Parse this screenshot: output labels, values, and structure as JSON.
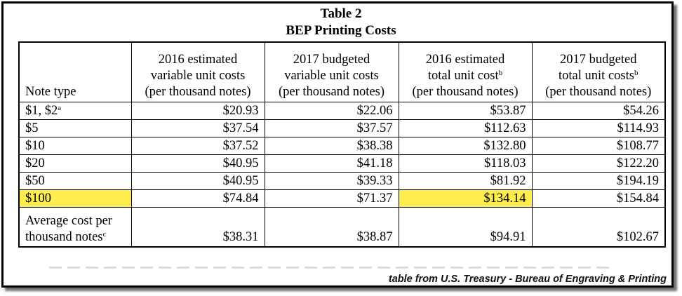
{
  "table": {
    "title": "Table 2",
    "subtitle": "BEP Printing Costs",
    "headers": [
      {
        "lines": [
          "",
          "",
          "Note type"
        ],
        "sup": ""
      },
      {
        "lines": [
          "2016 estimated",
          "variable unit costs",
          "(per thousand notes)"
        ],
        "sup": ""
      },
      {
        "lines": [
          "2017 budgeted",
          "variable unit costs",
          "(per thousand notes)"
        ],
        "sup": ""
      },
      {
        "lines": [
          "2016 estimated",
          "total unit cost",
          "(per thousand notes)"
        ],
        "sup": "b"
      },
      {
        "lines": [
          "2017 budgeted",
          "total unit costs",
          "(per thousand notes)"
        ],
        "sup": "b"
      }
    ],
    "rows": [
      {
        "label": "$1, $2",
        "sup": "a",
        "values": [
          "$20.93",
          "$22.06",
          "$53.87",
          "$54.26"
        ]
      },
      {
        "label": "$5",
        "sup": "",
        "values": [
          "$37.54",
          "$37.57",
          "$112.63",
          "$114.93"
        ]
      },
      {
        "label": "$10",
        "sup": "",
        "values": [
          "$37.52",
          "$38.38",
          "$132.80",
          "$108.77"
        ]
      },
      {
        "label": "$20",
        "sup": "",
        "values": [
          "$40.95",
          "$41.18",
          "$118.03",
          "$122.20"
        ]
      },
      {
        "label": "$50",
        "sup": "",
        "values": [
          "$40.95",
          "$39.33",
          "$81.92",
          "$194.19"
        ]
      },
      {
        "label": "$100",
        "sup": "",
        "values": [
          "$74.84",
          "$71.37",
          "$134.14",
          "$154.84"
        ]
      }
    ],
    "average_row": {
      "label_lines": [
        "Average cost per",
        "thousand notes"
      ],
      "sup": "c",
      "values": [
        "$38.31",
        "$38.87",
        "$94.91",
        "$102.67"
      ]
    }
  },
  "highlight_color": "#ffed4d",
  "credit": "table from U.S. Treasury - Bureau of Engraving & Printing"
}
